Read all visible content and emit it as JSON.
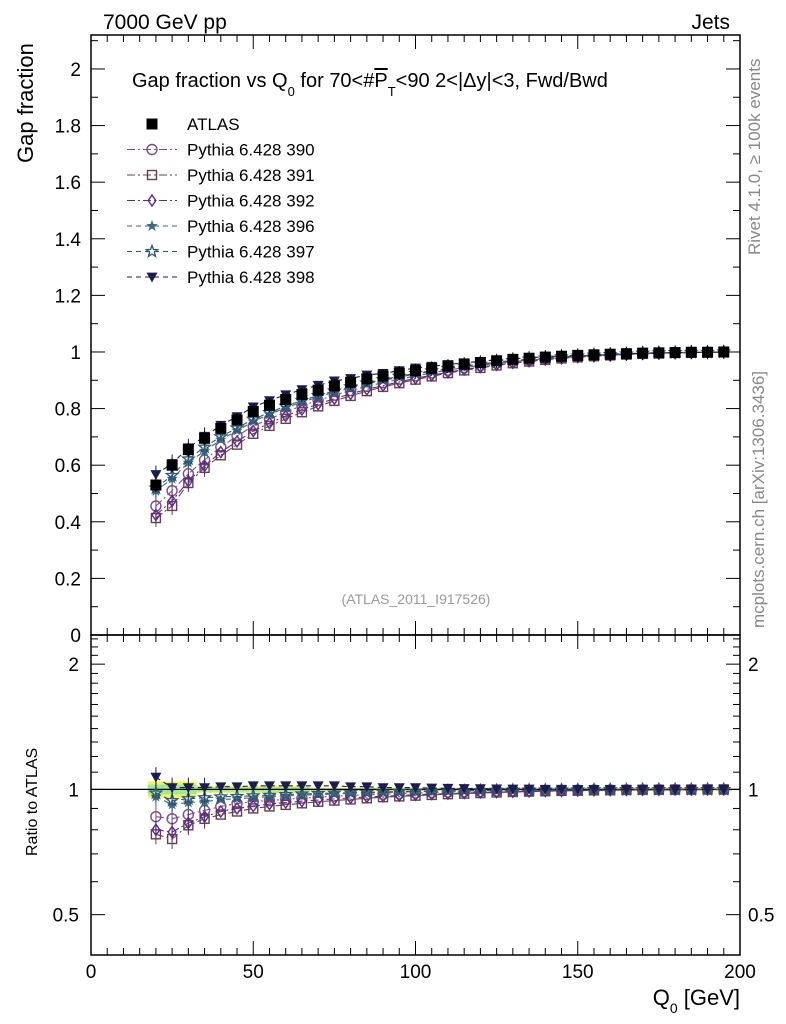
{
  "header": {
    "left": "7000 GeV pp",
    "right": "Jets"
  },
  "side_labels": {
    "rivet": "Rivet 4.1.0, ≥ 100k events",
    "mcplots": "mcplots.cern.ch [arXiv:1306.3436]"
  },
  "chart_data": {
    "type": "scatter",
    "title": "Gap fraction vs Q0 for 70<#PT<90  2<|Δy|<3, Fwd/Bwd",
    "title_parts": {
      "p1": "Gap fraction vs Q",
      "p1_sub": "0",
      "p2": " for 70<#",
      "p2_over": "P",
      "p2_sub": "T",
      "p3": "<90  2<|Δy|<3, Fwd/Bwd"
    },
    "analysis_tag": "(ATLAS_2011_I917526)",
    "xlabel": "Q",
    "xlabel_sub": "0",
    "xlabel_unit": " [GeV]",
    "ylabel_main": "Gap fraction",
    "ylabel_ratio": "Ratio to ATLAS",
    "xlim": [
      0,
      200
    ],
    "ylim_main": [
      0,
      2.12
    ],
    "ylim_ratio": [
      0.4,
      2.35
    ],
    "x_ticks": [
      "0",
      "50",
      "100",
      "150",
      "200"
    ],
    "y_ticks_main": [
      "0",
      "0.2",
      "0.4",
      "0.6",
      "0.8",
      "1",
      "1.2",
      "1.4",
      "1.6",
      "1.8",
      "2"
    ],
    "y_ticks_ratio": [
      "0.5",
      "1",
      "2"
    ],
    "x": [
      20,
      25,
      30,
      35,
      40,
      45,
      50,
      55,
      60,
      65,
      70,
      75,
      80,
      85,
      90,
      95,
      100,
      105,
      110,
      115,
      120,
      125,
      130,
      135,
      140,
      145,
      150,
      155,
      160,
      165,
      170,
      175,
      180,
      185,
      190,
      195
    ],
    "reference": {
      "name": "ATLAS",
      "color": "#000000",
      "values": [
        0.53,
        0.6,
        0.655,
        0.695,
        0.73,
        0.76,
        0.79,
        0.812,
        0.832,
        0.85,
        0.865,
        0.88,
        0.893,
        0.905,
        0.915,
        0.925,
        0.934,
        0.942,
        0.95,
        0.957,
        0.963,
        0.969,
        0.974,
        0.978,
        0.982,
        0.985,
        0.988,
        0.99,
        0.992,
        0.994,
        0.996,
        0.997,
        0.998,
        0.999,
        0.999,
        1.0
      ]
    },
    "series": [
      {
        "name": "Pythia 6.428 390",
        "color": "#7e4c86",
        "marker": "circle-open",
        "dash": "8,3,2,3",
        "ratio": [
          0.86,
          0.85,
          0.87,
          0.89,
          0.91,
          0.925,
          0.935,
          0.94,
          0.947,
          0.953,
          0.958,
          0.963,
          0.967,
          0.971,
          0.974,
          0.977,
          0.98,
          0.983,
          0.985,
          0.987,
          0.989,
          0.991,
          0.992,
          0.993,
          0.994,
          0.995,
          0.996,
          0.997,
          0.997,
          0.998,
          0.998,
          0.999,
          0.999,
          0.999,
          1.0,
          1.0
        ]
      },
      {
        "name": "Pythia 6.428 391",
        "color": "#6a3d4e",
        "marker": "square-open",
        "dash": "8,3,2,3",
        "ratio": [
          0.78,
          0.76,
          0.82,
          0.85,
          0.87,
          0.885,
          0.9,
          0.91,
          0.918,
          0.926,
          0.934,
          0.94,
          0.946,
          0.952,
          0.958,
          0.962,
          0.966,
          0.97,
          0.974,
          0.977,
          0.98,
          0.983,
          0.986,
          0.988,
          0.99,
          0.992,
          0.993,
          0.995,
          0.996,
          0.997,
          0.998,
          0.998,
          0.999,
          0.999,
          1.0,
          1.0
        ]
      },
      {
        "name": "Pythia 6.428 392",
        "color": "#5a2c86",
        "marker": "diamond-open",
        "dash": "8,3,2,3",
        "ratio": [
          0.8,
          0.79,
          0.83,
          0.86,
          0.885,
          0.9,
          0.912,
          0.922,
          0.93,
          0.937,
          0.943,
          0.949,
          0.954,
          0.959,
          0.963,
          0.967,
          0.971,
          0.974,
          0.977,
          0.98,
          0.983,
          0.985,
          0.987,
          0.989,
          0.991,
          0.992,
          0.994,
          0.995,
          0.996,
          0.997,
          0.998,
          0.998,
          0.999,
          0.999,
          1.0,
          1.0
        ]
      },
      {
        "name": "Pythia 6.428 396",
        "color": "#3e6a80",
        "marker": "star-filled",
        "dash": "5,4",
        "ratio": [
          0.96,
          0.92,
          0.93,
          0.935,
          0.945,
          0.95,
          0.955,
          0.96,
          0.965,
          0.968,
          0.972,
          0.975,
          0.978,
          0.98,
          0.983,
          0.985,
          0.987,
          0.989,
          0.99,
          0.992,
          0.993,
          0.994,
          0.995,
          0.996,
          0.997,
          0.997,
          0.998,
          0.998,
          0.999,
          0.999,
          0.999,
          1.0,
          1.0,
          1.0,
          1.0,
          1.0
        ]
      },
      {
        "name": "Pythia 6.428 397",
        "color": "#2e5570",
        "marker": "star-open",
        "dash": "5,4",
        "ratio": [
          0.98,
          0.94,
          0.95,
          0.955,
          0.96,
          0.962,
          0.965,
          0.968,
          0.972,
          0.975,
          0.978,
          0.98,
          0.982,
          0.984,
          0.986,
          0.988,
          0.99,
          0.991,
          0.992,
          0.993,
          0.994,
          0.995,
          0.996,
          0.997,
          0.997,
          0.998,
          0.998,
          0.999,
          0.999,
          0.999,
          1.0,
          1.0,
          1.0,
          1.0,
          1.0,
          1.0
        ]
      },
      {
        "name": "Pythia 6.428 398",
        "color": "#1c1c4e",
        "marker": "triangle-down-filled",
        "dash": "5,4",
        "ratio": [
          1.07,
          1.01,
          1.01,
          1.01,
          1.015,
          1.015,
          1.02,
          1.02,
          1.02,
          1.02,
          1.02,
          1.02,
          1.015,
          1.015,
          1.01,
          1.01,
          1.01,
          1.008,
          1.006,
          1.005,
          1.004,
          1.003,
          1.002,
          1.002,
          1.001,
          1.001,
          1.0,
          1.0,
          1.0,
          1.0,
          1.0,
          1.0,
          1.0,
          1.0,
          1.0,
          1.0
        ]
      }
    ]
  }
}
